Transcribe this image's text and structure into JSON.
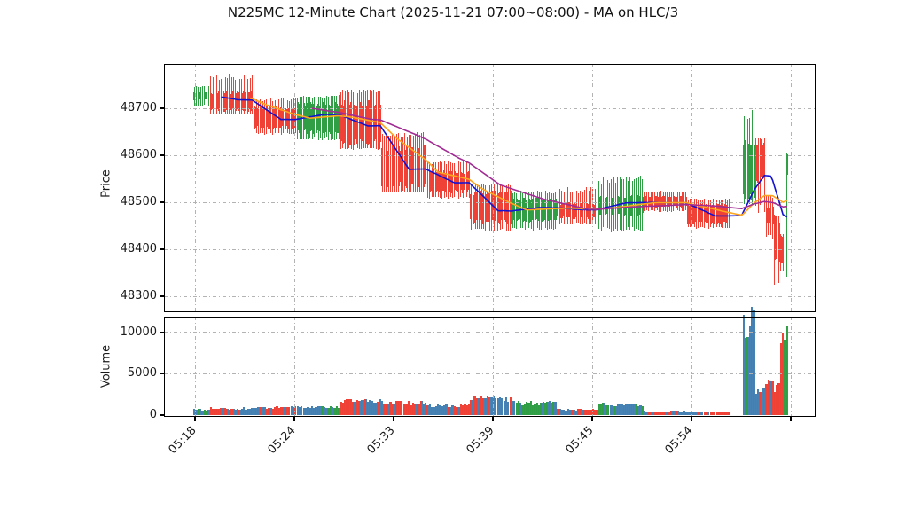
{
  "title": "N225MC 12-Minute Chart (2025-11-21 07:00~08:00) - MA on HLC/3",
  "colors": {
    "up": "#2f9e44",
    "down": "#ef4136",
    "volume_fill": "#4682b4",
    "grid": "#b3b3b3",
    "axis": "#000000",
    "text": "#1a1a1a"
  },
  "chart_data": {
    "type": "candlestick",
    "title": "N225MC 12-Minute Chart (2025-11-21 07:00~08:00) - MA on HLC/3",
    "legend_position": "none",
    "grid": "on",
    "price_axis": {
      "label": "Price",
      "ticks": [
        48700,
        48600,
        48500,
        48400,
        48300
      ],
      "range": [
        48266,
        48794
      ]
    },
    "volume_axis": {
      "label": "Volume",
      "ticks": [
        10000,
        5000,
        0
      ],
      "range": [
        0,
        12150
      ]
    },
    "x_axis": {
      "tick_labels": [
        "05:18",
        "05:24",
        "05:33",
        "05:39",
        "05:45",
        "05:54"
      ],
      "extra_unlabeled_tick": true
    },
    "ma_lines": [
      {
        "name": "fast-ma",
        "window": 14,
        "color": "#1212d0"
      },
      {
        "name": "medium-ma",
        "window": 28,
        "color": "#ffa51e"
      },
      {
        "name": "slow-ma",
        "window": 58,
        "color": "#a02c93"
      }
    ],
    "segments": [
      {
        "n": 8,
        "dir": "up",
        "body": [
          48736,
          48717
        ],
        "wick": [
          48748,
          48704
        ],
        "vol": 700,
        "visible": true
      },
      {
        "n": 21,
        "dir": "down",
        "body": [
          48737,
          48692
        ],
        "wick": [
          48775,
          48686
        ],
        "vol": 800,
        "visible": true
      },
      {
        "n": 21,
        "dir": "down",
        "body": [
          48704,
          48655
        ],
        "wick": [
          48722,
          48643
        ],
        "vol": 900,
        "visible": true
      },
      {
        "n": 21,
        "dir": "up",
        "body": [
          48714,
          48645
        ],
        "wick": [
          48728,
          48632
        ],
        "vol": 950,
        "visible": true
      },
      {
        "n": 20,
        "dir": "down",
        "body": [
          48718,
          48620
        ],
        "wick": [
          48740,
          48612
        ],
        "vol": 1700,
        "visible": true
      },
      {
        "n": 22,
        "dir": "down",
        "body": [
          48622,
          48530
        ],
        "wick": [
          48650,
          48520
        ],
        "vol": 1500,
        "visible": true
      },
      {
        "n": 21,
        "dir": "down",
        "body": [
          48568,
          48519
        ],
        "wick": [
          48590,
          48508
        ],
        "vol": 1100,
        "visible": true
      },
      {
        "n": 20,
        "dir": "down",
        "body": [
          48525,
          48453
        ],
        "wick": [
          48540,
          48438
        ],
        "vol": 1950,
        "visible": true
      },
      {
        "n": 22,
        "dir": "up",
        "body": [
          48510,
          48456
        ],
        "wick": [
          48525,
          48440
        ],
        "vol": 1450,
        "visible": true
      },
      {
        "n": 20,
        "dir": "down",
        "body": [
          48500,
          48464
        ],
        "wick": [
          48532,
          48452
        ],
        "vol": 650,
        "visible": true
      },
      {
        "n": 22,
        "dir": "up",
        "body": [
          48515,
          48470
        ],
        "wick": [
          48556,
          48436
        ],
        "vol": 1250,
        "visible": true
      },
      {
        "n": 21,
        "dir": "down",
        "body": [
          48514,
          48489
        ],
        "wick": [
          48524,
          48479
        ],
        "vol": 450,
        "visible": true
      },
      {
        "n": 21,
        "dir": "down",
        "body": [
          48497,
          48452
        ],
        "wick": [
          48508,
          48444
        ],
        "vol": 400,
        "visible": true
      },
      {
        "n": 6,
        "dir": "none",
        "body": [
          48480,
          48468
        ],
        "wick": [
          48480,
          48468
        ],
        "vol": 0,
        "visible": false
      },
      {
        "n": 6,
        "dir": "up",
        "body": [
          48634,
          48500
        ],
        "wick": [
          48697,
          48496
        ],
        "vol": 11200,
        "visible": true
      },
      {
        "n": 5,
        "dir": "down",
        "body": [
          48634,
          48540
        ],
        "wick": [
          48636,
          48468
        ],
        "vol": 2800,
        "visible": true
      },
      {
        "n": 4,
        "dir": "down",
        "body": [
          48495,
          48452
        ],
        "wick": [
          48515,
          48417
        ],
        "vol": 3700,
        "visible": true
      },
      {
        "n": 3,
        "dir": "down",
        "body": [
          48471,
          48370
        ],
        "wick": [
          48473,
          48322
        ],
        "vol": 3300,
        "visible": true
      },
      {
        "n": 2,
        "dir": "down",
        "body": [
          48430,
          48368
        ],
        "wick": [
          48432,
          48350
        ],
        "vol": 9100,
        "visible": true
      },
      {
        "n": 2,
        "dir": "up",
        "body": [
          48605,
          48555
        ],
        "wick": [
          48607,
          48288
        ],
        "vol": 9900,
        "visible": true
      }
    ]
  }
}
